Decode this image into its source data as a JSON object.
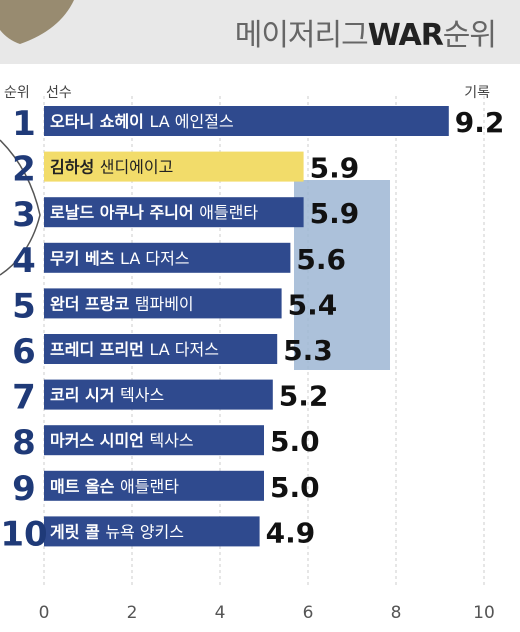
{
  "title_prefix": "메이저리그",
  "title_bold": "WAR",
  "title_suffix": "순위",
  "headers": {
    "rank": "순위",
    "player": "선수",
    "record": "기록"
  },
  "colors": {
    "bar": "#2f4a8e",
    "highlight_bar": "#f2dc6a",
    "value_text": "#111111",
    "rank_text": "#1f3a78",
    "grid": "#cccccc",
    "axis_text": "#555555",
    "deco_block": "#9db6d3",
    "deco_photo": "#8a7a5a"
  },
  "chart_data": {
    "type": "bar",
    "orientation": "horizontal",
    "xlim": [
      0,
      10
    ],
    "xticks": [
      0,
      2,
      4,
      6,
      8,
      10
    ],
    "grid": true,
    "rows": [
      {
        "rank": "1",
        "name": "오타니 쇼헤이",
        "team": "LA 에인절스",
        "value": 9.2,
        "label": "9.2"
      },
      {
        "rank": "2",
        "name": "김하성",
        "team": "샌디에이고",
        "value": 5.9,
        "label": "5.9",
        "highlight": true
      },
      {
        "rank": "3",
        "name": "로날드 아쿠나 주니어",
        "team": "애틀랜타",
        "value": 5.9,
        "label": "5.9"
      },
      {
        "rank": "4",
        "name": "무키 베츠",
        "team": "LA 다저스",
        "value": 5.6,
        "label": "5.6"
      },
      {
        "rank": "5",
        "name": "완더 프랑코",
        "team": "탬파베이",
        "value": 5.4,
        "label": "5.4"
      },
      {
        "rank": "6",
        "name": "프레디 프리먼",
        "team": "LA 다저스",
        "value": 5.3,
        "label": "5.3"
      },
      {
        "rank": "7",
        "name": "코리 시거",
        "team": "텍사스",
        "value": 5.2,
        "label": "5.2"
      },
      {
        "rank": "8",
        "name": "마커스 시미언",
        "team": "텍사스",
        "value": 5.0,
        "label": "5.0"
      },
      {
        "rank": "9",
        "name": "매트 올슨",
        "team": "애틀랜타",
        "value": 5.0,
        "label": "5.0"
      },
      {
        "rank": "10",
        "name": "게릿 콜",
        "team": "뉴욕 양키스",
        "value": 4.9,
        "label": "4.9"
      }
    ]
  }
}
